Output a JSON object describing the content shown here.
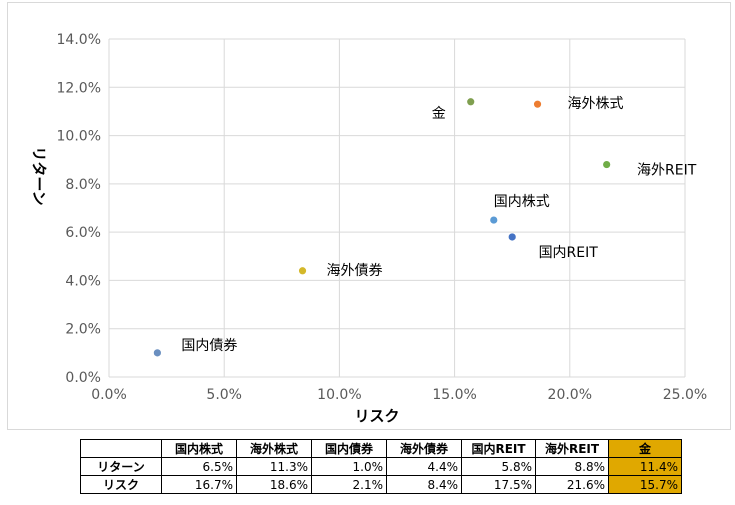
{
  "chart_data": {
    "type": "scatter",
    "xlabel": "リスク",
    "ylabel": "リターン",
    "xlim": [
      0,
      25
    ],
    "ylim": [
      0,
      14
    ],
    "x_ticks": [
      "0.0%",
      "5.0%",
      "10.0%",
      "15.0%",
      "20.0%",
      "25.0%"
    ],
    "y_ticks": [
      "0.0%",
      "2.0%",
      "4.0%",
      "6.0%",
      "8.0%",
      "10.0%",
      "12.0%",
      "14.0%"
    ],
    "grid": true,
    "points": [
      {
        "label": "国内株式",
        "x": 16.7,
        "y": 6.5,
        "color": "#5b9bd5"
      },
      {
        "label": "海外株式",
        "x": 18.6,
        "y": 11.3,
        "color": "#ed7d31"
      },
      {
        "label": "国内債券",
        "x": 2.1,
        "y": 1.0,
        "color": "#6a8fc0"
      },
      {
        "label": "海外債券",
        "x": 8.4,
        "y": 4.4,
        "color": "#d4b82a"
      },
      {
        "label": "国内REIT",
        "x": 17.5,
        "y": 5.8,
        "color": "#4472c4"
      },
      {
        "label": "海外REIT",
        "x": 21.6,
        "y": 8.8,
        "color": "#70ad47"
      },
      {
        "label": "金",
        "x": 15.7,
        "y": 11.4,
        "color": "#7f9f4f",
        "label_color": "#c9a000"
      }
    ]
  },
  "table": {
    "headers": [
      "",
      "国内株式",
      "海外株式",
      "国内債券",
      "海外債券",
      "国内REIT",
      "海外REIT",
      "金"
    ],
    "rows": [
      {
        "label": "リターン",
        "values": [
          "6.5%",
          "11.3%",
          "1.0%",
          "4.4%",
          "5.8%",
          "8.8%",
          "11.4%"
        ]
      },
      {
        "label": "リスク",
        "values": [
          "16.7%",
          "18.6%",
          "2.1%",
          "8.4%",
          "17.5%",
          "21.6%",
          "15.7%"
        ]
      }
    ],
    "highlight_color": "#e0a800"
  }
}
